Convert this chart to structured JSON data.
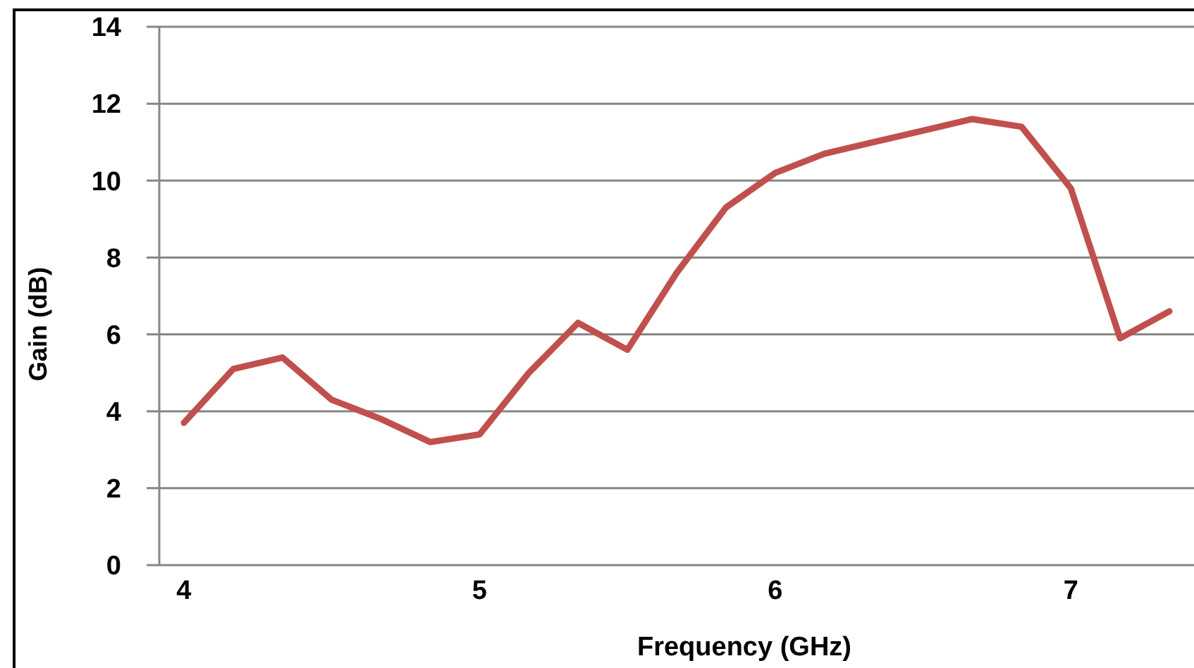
{
  "chart_data": {
    "type": "line",
    "xlabel": "Frequency (GHz)",
    "ylabel": "Gain (dB)",
    "categories": [
      "4",
      null,
      null,
      null,
      null,
      null,
      "5",
      null,
      null,
      null,
      null,
      null,
      "6",
      null,
      null,
      null,
      null,
      null,
      "7",
      null,
      null
    ],
    "series": [
      {
        "color": "#c0504d",
        "values": [
          3.7,
          5.1,
          5.4,
          4.3,
          3.8,
          3.2,
          3.4,
          5.0,
          6.3,
          5.6,
          7.6,
          9.3,
          10.2,
          10.7,
          11.0,
          11.3,
          11.6,
          11.4,
          9.8,
          5.9,
          6.6
        ]
      }
    ],
    "ylim": [
      0,
      14
    ],
    "yticks": [
      0,
      2,
      4,
      6,
      8,
      10,
      12,
      14
    ],
    "grid": "y",
    "marker": "none",
    "line_style": "solid"
  }
}
